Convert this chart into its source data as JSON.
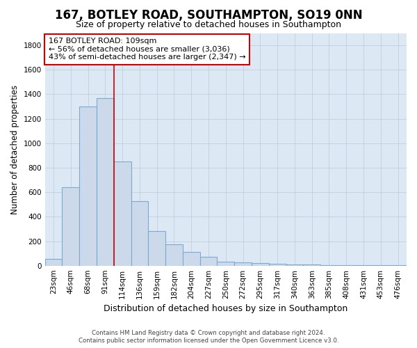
{
  "title": "167, BOTLEY ROAD, SOUTHAMPTON, SO19 0NN",
  "subtitle": "Size of property relative to detached houses in Southampton",
  "xlabel": "Distribution of detached houses by size in Southampton",
  "ylabel": "Number of detached properties",
  "categories": [
    "23sqm",
    "46sqm",
    "68sqm",
    "91sqm",
    "114sqm",
    "136sqm",
    "159sqm",
    "182sqm",
    "204sqm",
    "227sqm",
    "250sqm",
    "272sqm",
    "295sqm",
    "317sqm",
    "340sqm",
    "363sqm",
    "385sqm",
    "408sqm",
    "431sqm",
    "453sqm",
    "476sqm"
  ],
  "values": [
    55,
    640,
    1300,
    1370,
    850,
    525,
    280,
    175,
    110,
    70,
    35,
    25,
    20,
    15,
    10,
    8,
    5,
    5,
    3,
    2,
    2
  ],
  "bar_color": "#ccd9ea",
  "bar_edge_color": "#7aaad0",
  "vline_color": "#cc0000",
  "vline_index": 3.5,
  "annotation_line1": "167 BOTLEY ROAD: 109sqm",
  "annotation_line2": "← 56% of detached houses are smaller (3,036)",
  "annotation_line3": "43% of semi-detached houses are larger (2,347) →",
  "annotation_box_facecolor": "#ffffff",
  "annotation_box_edgecolor": "#cc0000",
  "ylim": [
    0,
    1900
  ],
  "yticks": [
    0,
    200,
    400,
    600,
    800,
    1000,
    1200,
    1400,
    1600,
    1800
  ],
  "ax_facecolor": "#dde8f5",
  "fig_facecolor": "#ffffff",
  "grid_color": "#c0cfe0",
  "title_fontsize": 12,
  "subtitle_fontsize": 9,
  "ylabel_fontsize": 8.5,
  "xlabel_fontsize": 9,
  "tick_fontsize": 7.5,
  "footer_line1": "Contains HM Land Registry data © Crown copyright and database right 2024.",
  "footer_line2": "Contains public sector information licensed under the Open Government Licence v3.0."
}
